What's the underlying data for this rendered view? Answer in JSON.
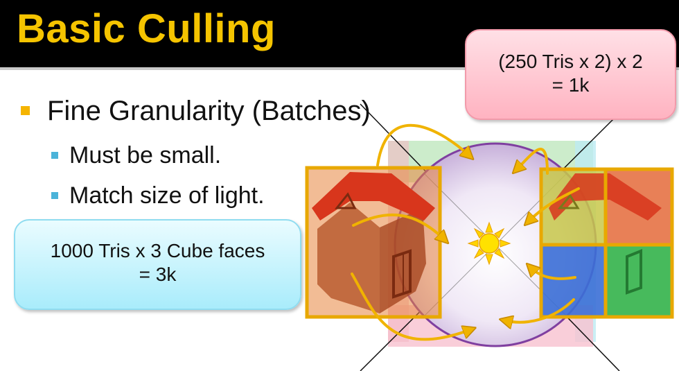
{
  "slide": {
    "title": "Basic Culling",
    "bullets": {
      "main": "Fine Granularity (Batches)",
      "sub": [
        "Must be small.",
        "Match size of light."
      ]
    },
    "callouts": {
      "top_right": {
        "line1": "(250 Tris x 2) x 2",
        "line2": "= 1k"
      },
      "left": {
        "line1": "1000 Tris x 3 Cube faces",
        "line2": "= 3k"
      }
    }
  },
  "diagram": {
    "icons": [
      "sun-icon",
      "house-icon",
      "arrow-icon"
    ],
    "colors": {
      "title": "#f5c400",
      "batch_border": "#e8a800",
      "arrow": "#f0b300",
      "sphere_outline": "#7f3fa0",
      "house_roof": "#d8361c",
      "house_wall": "#c46a3a",
      "face_yellow": "#c8c84a",
      "face_blue": "#3b6fd6",
      "face_green": "#33b34a"
    }
  }
}
